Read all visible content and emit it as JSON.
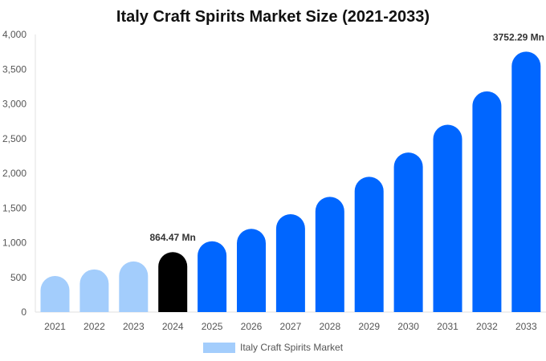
{
  "chart_data": {
    "type": "bar",
    "title": "Italy Craft Spirits Market Size (2021-2033)",
    "xlabel": "",
    "ylabel": "",
    "categories": [
      "2021",
      "2022",
      "2023",
      "2024",
      "2025",
      "2026",
      "2027",
      "2028",
      "2029",
      "2030",
      "2031",
      "2032",
      "2033"
    ],
    "series": [
      {
        "name": "Italy Craft Spirits Market",
        "values": [
          520,
          615,
          730,
          864.47,
          1020,
          1200,
          1410,
          1660,
          1950,
          2300,
          2700,
          3180,
          3752.29
        ]
      }
    ],
    "ylim": [
      0,
      4000
    ],
    "yticks": [
      "0",
      "500",
      "1,000",
      "1,500",
      "2,000",
      "2,500",
      "3,000",
      "3,500",
      "4,000"
    ],
    "data_labels": [
      {
        "index": 3,
        "text": "864.47 Mn"
      },
      {
        "index": 12,
        "text": "3752.29 Mn"
      }
    ],
    "colors": {
      "historical": "#a3cdfc",
      "current": "#000000",
      "forecast": "#0066ff",
      "legend_swatch": "#a3cdfc"
    },
    "grid": false,
    "legend_position": "bottom"
  }
}
